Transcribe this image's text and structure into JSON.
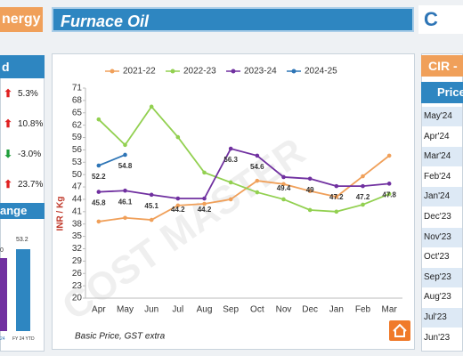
{
  "header": {
    "left_tab": "nergy",
    "title": "Furnace Oil",
    "logo": "C"
  },
  "left_panel": {
    "title": "d",
    "items": [
      "5.3%",
      "10.8%",
      "-3.0%",
      "23.7%"
    ],
    "section": "ange",
    "bar_labels": [
      "0",
      "53.2"
    ],
    "footer": [
      "24",
      "FY 24 YTD"
    ]
  },
  "right_panel": {
    "title": "CIR -",
    "subtitle": "Price",
    "months": [
      "May'24",
      "Apr'24",
      "Mar'24",
      "Feb'24",
      "Jan'24",
      "Dec'23",
      "Nov'23",
      "Oct'23",
      "Sep'23",
      "Aug'23",
      "Jul'23",
      "Jun'23"
    ]
  },
  "chart_data": {
    "type": "line",
    "y_label": "INR / Kg",
    "note": "Basic Price, GST extra",
    "watermark": "COST MASTER",
    "categories": [
      "Apr",
      "May",
      "Jun",
      "Jul",
      "Aug",
      "Sep",
      "Oct",
      "Nov",
      "Dec",
      "Jan",
      "Feb",
      "Mar"
    ],
    "series": [
      {
        "name": "2021-22",
        "color": "#f0a05a",
        "values": [
          38.6,
          39.5,
          39.0,
          42.5,
          42.9,
          44.0,
          48.5,
          47.7,
          46.0,
          44.6,
          49.6,
          54.6
        ]
      },
      {
        "name": "2022-23",
        "color": "#92d050",
        "values": [
          63.4,
          57.2,
          66.5,
          59.1,
          50.5,
          48.1,
          45.7,
          44.0,
          41.4,
          41.0,
          42.7,
          45.3
        ]
      },
      {
        "name": "2023-24",
        "color": "#7030a0",
        "values": [
          45.8,
          46.1,
          45.1,
          44.2,
          44.2,
          56.3,
          54.6,
          49.4,
          49.0,
          47.2,
          47.2,
          47.8
        ]
      },
      {
        "name": "2024-25",
        "color": "#2e75b6",
        "values": [
          52.2,
          54.8,
          null,
          null,
          null,
          null,
          null,
          null,
          null,
          null,
          null,
          null
        ]
      }
    ],
    "labeled_series": [
      "2023-24",
      "2024-25"
    ],
    "ylim": [
      20,
      71
    ],
    "yticks": [
      20,
      23,
      26,
      29,
      32,
      35,
      38,
      41,
      44,
      47,
      50,
      53,
      56,
      59,
      62,
      65,
      68,
      71
    ],
    "grid": false,
    "legend": "top"
  }
}
